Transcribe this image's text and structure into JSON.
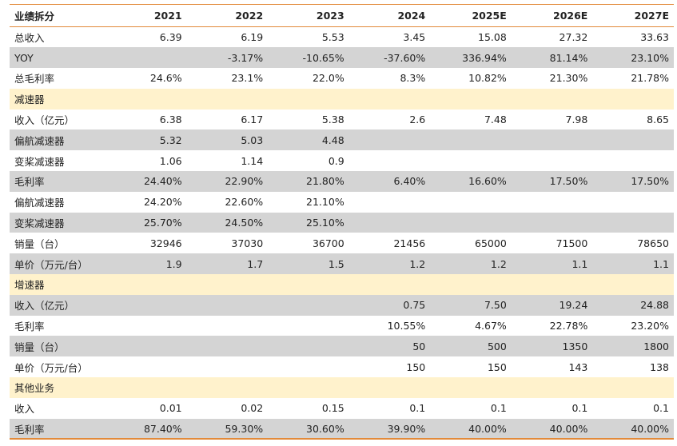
{
  "header": {
    "title": "业绩拆分",
    "years": [
      "2021",
      "2022",
      "2023",
      "2024",
      "2025E",
      "2026E",
      "2027E"
    ]
  },
  "rows": [
    {
      "label": "总收入",
      "style": "white",
      "values": [
        "6.39",
        "6.19",
        "5.53",
        "3.45",
        "15.08",
        "27.32",
        "33.63"
      ]
    },
    {
      "label": "YOY",
      "style": "gray",
      "values": [
        "",
        "-3.17%",
        "-10.65%",
        "-37.60%",
        "336.94%",
        "81.14%",
        "23.10%"
      ]
    },
    {
      "label": "总毛利率",
      "style": "white",
      "values": [
        "24.6%",
        "23.1%",
        "22.0%",
        "8.3%",
        "10.82%",
        "21.30%",
        "21.78%"
      ]
    },
    {
      "label": "减速器",
      "style": "section",
      "values": [
        "",
        "",
        "",
        "",
        "",
        "",
        ""
      ]
    },
    {
      "label": "收入（亿元）",
      "style": "white",
      "values": [
        "6.38",
        "6.17",
        "5.38",
        "2.6",
        "7.48",
        "7.98",
        "8.65"
      ]
    },
    {
      "label": "偏航减速器",
      "style": "gray",
      "values": [
        "5.32",
        "5.03",
        "4.48",
        "",
        "",
        "",
        ""
      ]
    },
    {
      "label": "变桨减速器",
      "style": "white",
      "values": [
        "1.06",
        "1.14",
        "0.9",
        "",
        "",
        "",
        ""
      ]
    },
    {
      "label": "毛利率",
      "style": "gray",
      "values": [
        "24.40%",
        "22.90%",
        "21.80%",
        "6.40%",
        "16.60%",
        "17.50%",
        "17.50%"
      ]
    },
    {
      "label": "偏航减速器",
      "style": "white",
      "values": [
        "24.20%",
        "22.60%",
        "21.10%",
        "",
        "",
        "",
        ""
      ]
    },
    {
      "label": "变桨减速器",
      "style": "gray",
      "values": [
        "25.70%",
        "24.50%",
        "25.10%",
        "",
        "",
        "",
        ""
      ]
    },
    {
      "label": "销量（台）",
      "style": "white",
      "values": [
        "32946",
        "37030",
        "36700",
        "21456",
        "65000",
        "71500",
        "78650"
      ]
    },
    {
      "label": "单价（万元/台）",
      "style": "gray",
      "values": [
        "1.9",
        "1.7",
        "1.5",
        "1.2",
        "1.2",
        "1.1",
        "1.1"
      ]
    },
    {
      "label": "增速器",
      "style": "section",
      "values": [
        "",
        "",
        "",
        "",
        "",
        "",
        ""
      ]
    },
    {
      "label": "收入（亿元）",
      "style": "gray",
      "values": [
        "",
        "",
        "",
        "0.75",
        "7.50",
        "19.24",
        "24.88"
      ]
    },
    {
      "label": "毛利率",
      "style": "white",
      "values": [
        "",
        "",
        "",
        "10.55%",
        "4.67%",
        "22.78%",
        "23.20%"
      ]
    },
    {
      "label": "销量（台）",
      "style": "gray",
      "values": [
        "",
        "",
        "",
        "50",
        "500",
        "1350",
        "1800"
      ]
    },
    {
      "label": "单价（万元/台）",
      "style": "white",
      "values": [
        "",
        "",
        "",
        "150",
        "150",
        "143",
        "138"
      ]
    },
    {
      "label": "其他业务",
      "style": "section",
      "values": [
        "",
        "",
        "",
        "",
        "",
        "",
        ""
      ]
    },
    {
      "label": "收入",
      "style": "white",
      "values": [
        "0.01",
        "0.02",
        "0.15",
        "0.1",
        "0.1",
        "0.1",
        "0.1"
      ]
    },
    {
      "label": "毛利率",
      "style": "gray",
      "values": [
        "87.40%",
        "59.30%",
        "30.60%",
        "39.90%",
        "40.00%",
        "40.00%",
        "40.00%"
      ]
    }
  ]
}
